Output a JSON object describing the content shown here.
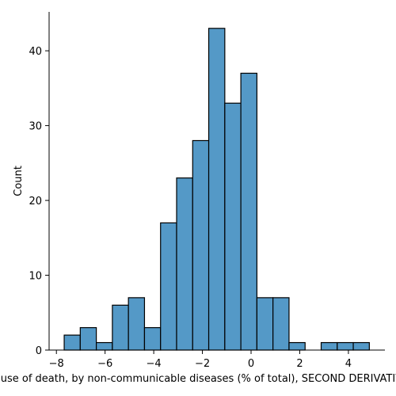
{
  "chart_data": {
    "type": "bar",
    "subtype": "histogram",
    "xlabel": "Cause of death, by non-communicable diseases (% of total), SECOND DERIVATIVE",
    "ylabel": "Count",
    "xlim": [
      -8.3,
      5.5
    ],
    "ylim": [
      0,
      45.2
    ],
    "xticks": [
      -8,
      -6,
      -4,
      -2,
      0,
      2,
      4
    ],
    "xtick_labels": [
      "−8",
      "−6",
      "−4",
      "−2",
      "0",
      "2",
      "4"
    ],
    "yticks": [
      0,
      10,
      20,
      30,
      40
    ],
    "ytick_labels": [
      "0",
      "10",
      "20",
      "30",
      "40"
    ],
    "bin_edges": [
      -7.68,
      -7.02,
      -6.36,
      -5.7,
      -5.04,
      -4.38,
      -3.72,
      -3.06,
      -2.4,
      -1.74,
      -1.08,
      -0.42,
      0.24,
      0.9,
      1.56,
      2.22,
      2.88,
      3.54,
      4.2,
      4.86
    ],
    "counts": [
      2,
      3,
      1,
      6,
      7,
      3,
      17,
      23,
      28,
      43,
      33,
      37,
      7,
      7,
      1,
      0,
      1,
      1,
      1
    ],
    "bar_color": "#5499c7",
    "edge_color": "#000000",
    "grid": false
  }
}
